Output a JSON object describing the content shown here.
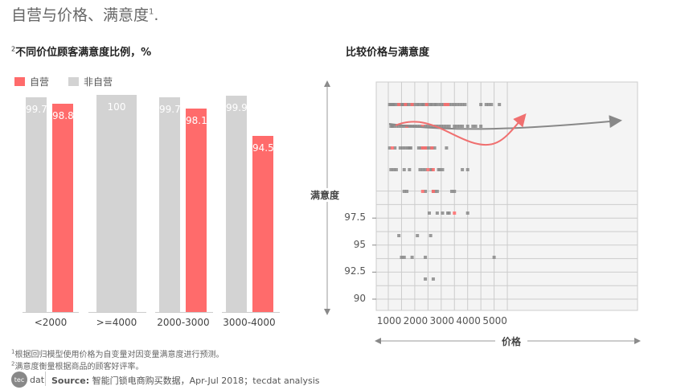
{
  "title": "自营与价格、满意度",
  "title_sup": "1",
  "title_suffix": ".",
  "left_chart": {
    "subtitle_sup": "2",
    "subtitle": "不同价位顾客满意度比例，%",
    "legend": [
      {
        "label": "自营",
        "color": "#ff6b6b"
      },
      {
        "label": "非自营",
        "color": "#d3d3d3"
      }
    ]
  },
  "right_chart": {
    "subtitle": "比较价格与满意度",
    "ylabel": "满意度",
    "xlabel": "价格"
  },
  "footnotes": [
    {
      "sup": "1",
      "text": "根据回归模型使用价格为自变量对因变量满意度进行预测。"
    },
    {
      "sup": "2",
      "text": "满意度衡量根据商品的顾客好评率。"
    }
  ],
  "source": {
    "logo_text": "tecdat",
    "label": "Source:",
    "text": " 智能门锁电商购买数据，Apr-Jul 2018；tecdat analysis"
  },
  "chart_data": [
    {
      "type": "bar",
      "title": "不同价位顾客满意度比例，%",
      "categories": [
        "<2000",
        ">=4000",
        "2000-3000",
        "3000-4000"
      ],
      "series": [
        {
          "name": "非自营",
          "color": "#d3d3d3",
          "values": [
            99.7,
            100,
            99.7,
            99.9
          ]
        },
        {
          "name": "自营",
          "color": "#ff6b6b",
          "values": [
            98.8,
            null,
            98.1,
            94.5
          ]
        }
      ],
      "legend_position": "top-left",
      "grid": false
    },
    {
      "type": "scatter",
      "title": "比较价格与满意度",
      "xlabel": "价格",
      "ylabel": "满意度",
      "xticks": [
        1000,
        2000,
        3000,
        4000,
        5000
      ],
      "yticks": [
        90,
        92.5,
        95,
        97.5
      ],
      "xlim": [
        780,
        5700
      ],
      "ylim": [
        89.5,
        100.5
      ],
      "grid": true,
      "series": [
        {
          "name": "非自营",
          "color": "#888888",
          "points": [
            [
              1050,
              99
            ],
            [
              1100,
              99
            ],
            [
              1150,
              99
            ],
            [
              1200,
              99
            ],
            [
              1250,
              99
            ],
            [
              1350,
              99
            ],
            [
              1400,
              99
            ],
            [
              1500,
              99
            ],
            [
              1550,
              99
            ],
            [
              1600,
              99
            ],
            [
              1700,
              99
            ],
            [
              1750,
              99
            ],
            [
              1850,
              99
            ],
            [
              1900,
              99
            ],
            [
              2000,
              99
            ],
            [
              2100,
              99
            ],
            [
              2150,
              99
            ],
            [
              2250,
              99
            ],
            [
              2300,
              99
            ],
            [
              2350,
              99
            ],
            [
              2450,
              99
            ],
            [
              2500,
              99
            ],
            [
              2600,
              99
            ],
            [
              2650,
              99
            ],
            [
              2750,
              99
            ],
            [
              2800,
              99
            ],
            [
              2900,
              99
            ],
            [
              3000,
              99
            ],
            [
              3100,
              99
            ],
            [
              3200,
              99
            ],
            [
              3300,
              99
            ],
            [
              3400,
              99
            ],
            [
              3500,
              99
            ],
            [
              3600,
              99
            ],
            [
              3700,
              99
            ],
            [
              3800,
              99
            ],
            [
              3900,
              99
            ],
            [
              4500,
              99
            ],
            [
              4700,
              99
            ],
            [
              4800,
              99
            ],
            [
              4900,
              99
            ],
            [
              5200,
              99
            ],
            [
              1100,
              98
            ],
            [
              1150,
              98
            ],
            [
              1200,
              98
            ],
            [
              1300,
              98
            ],
            [
              1400,
              98
            ],
            [
              1500,
              98
            ],
            [
              1600,
              98
            ],
            [
              1700,
              98
            ],
            [
              1800,
              98
            ],
            [
              1900,
              98
            ],
            [
              2000,
              98
            ],
            [
              2100,
              98
            ],
            [
              2200,
              98
            ],
            [
              2400,
              98
            ],
            [
              2500,
              98
            ],
            [
              2600,
              98
            ],
            [
              2700,
              98
            ],
            [
              2800,
              98
            ],
            [
              2900,
              98
            ],
            [
              3000,
              98
            ],
            [
              3100,
              98
            ],
            [
              3200,
              98
            ],
            [
              3300,
              98
            ],
            [
              3500,
              98
            ],
            [
              3600,
              98
            ],
            [
              3700,
              98
            ],
            [
              3800,
              98
            ],
            [
              4000,
              98
            ],
            [
              4200,
              98
            ],
            [
              4300,
              98
            ],
            [
              4500,
              98
            ],
            [
              1050,
              97
            ],
            [
              1250,
              97
            ],
            [
              1450,
              97
            ],
            [
              1550,
              97
            ],
            [
              1650,
              97
            ],
            [
              1750,
              97
            ],
            [
              1800,
              97
            ],
            [
              1850,
              97
            ],
            [
              2150,
              97
            ],
            [
              2250,
              97
            ],
            [
              2350,
              97
            ],
            [
              2450,
              97
            ],
            [
              2550,
              97
            ],
            [
              2650,
              97
            ],
            [
              2750,
              97
            ],
            [
              3200,
              97
            ],
            [
              1100,
              96
            ],
            [
              1200,
              96
            ],
            [
              1300,
              96
            ],
            [
              1600,
              96
            ],
            [
              1800,
              96
            ],
            [
              2200,
              96
            ],
            [
              2300,
              96
            ],
            [
              2400,
              96
            ],
            [
              2600,
              96
            ],
            [
              2650,
              96
            ],
            [
              2900,
              96
            ],
            [
              2950,
              96
            ],
            [
              3050,
              96
            ],
            [
              3800,
              96
            ],
            [
              4000,
              96
            ],
            [
              1600,
              95
            ],
            [
              1700,
              95
            ],
            [
              2400,
              95
            ],
            [
              2700,
              95
            ],
            [
              2750,
              95
            ],
            [
              2850,
              95
            ],
            [
              3400,
              95
            ],
            [
              3500,
              95
            ],
            [
              2550,
              94
            ],
            [
              2850,
              94
            ],
            [
              3050,
              94
            ],
            [
              3250,
              94
            ],
            [
              3300,
              94
            ],
            [
              4000,
              94
            ],
            [
              1400,
              93
            ],
            [
              2100,
              93
            ],
            [
              2600,
              93
            ],
            [
              1500,
              92
            ],
            [
              1600,
              92
            ],
            [
              1900,
              92
            ],
            [
              2400,
              92
            ],
            [
              5000,
              92
            ],
            [
              2400,
              91
            ],
            [
              2700,
              91
            ]
          ]
        },
        {
          "name": "自营",
          "color": "#ff6b6b",
          "points": [
            [
              1400,
              99
            ],
            [
              1650,
              99
            ],
            [
              1900,
              99
            ],
            [
              2450,
              99
            ],
            [
              3150,
              99
            ],
            [
              3250,
              99
            ],
            [
              1700,
              98
            ],
            [
              2300,
              98
            ],
            [
              1150,
              97
            ],
            [
              2300,
              97
            ],
            [
              2400,
              97
            ],
            [
              2650,
              97
            ],
            [
              2500,
              96
            ],
            [
              2700,
              96
            ],
            [
              2300,
              95
            ],
            [
              2700,
              95
            ],
            [
              3500,
              94
            ]
          ]
        }
      ],
      "trend_lines": [
        {
          "name": "overall",
          "color": "#888888",
          "description": "nearly flat, slight rise to the right, ~98 across 1000-5300"
        },
        {
          "name": "自营",
          "color": "#ff6b6b",
          "description": "dips from ~98.1 at 1100 to ~97.3 at 2700 then rises to ~98.6 at 3500"
        }
      ]
    }
  ]
}
